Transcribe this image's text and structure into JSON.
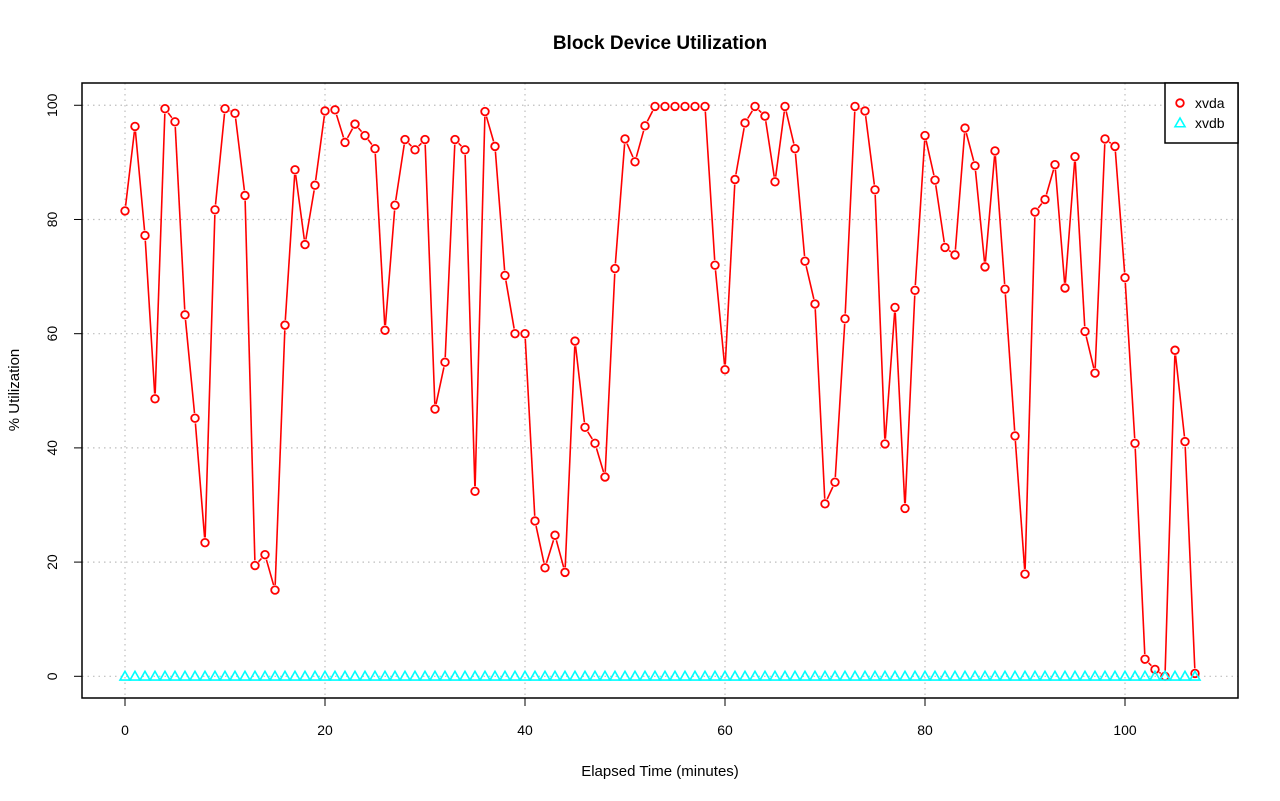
{
  "chart_data": {
    "type": "line",
    "title": "Block Device Utilization",
    "xlabel": "Elapsed Time (minutes)",
    "ylabel": "% Utilization",
    "xlim": [
      -4.3,
      111.3
    ],
    "ylim": [
      -3.8,
      103.9
    ],
    "xticks": [
      0,
      20,
      40,
      60,
      80,
      100
    ],
    "yticks": [
      0,
      20,
      40,
      60,
      80,
      100
    ],
    "grid": true,
    "legend_position": "top-right",
    "series": [
      {
        "name": "xvda",
        "color": "#ff0000",
        "marker": "circle",
        "x": [
          0,
          1,
          2,
          3,
          4,
          5,
          6,
          7,
          8,
          9,
          10,
          11,
          12,
          13,
          14,
          15,
          16,
          17,
          18,
          19,
          20,
          21,
          22,
          23,
          24,
          25,
          26,
          27,
          28,
          29,
          30,
          31,
          32,
          33,
          34,
          35,
          36,
          37,
          38,
          39,
          40,
          41,
          42,
          43,
          44,
          45,
          46,
          47,
          48,
          49,
          50,
          51,
          52,
          53,
          54,
          55,
          56,
          57,
          58,
          59,
          60,
          61,
          62,
          63,
          64,
          65,
          66,
          67,
          68,
          69,
          70,
          71,
          72,
          73,
          74,
          75,
          76,
          77,
          78,
          79,
          80,
          81,
          82,
          83,
          84,
          85,
          86,
          87,
          88,
          89,
          90,
          91,
          92,
          93,
          94,
          95,
          96,
          97,
          98,
          99,
          100,
          101,
          102,
          103,
          104,
          105,
          106,
          107
        ],
        "values": [
          81.5,
          96.3,
          77.2,
          48.6,
          99.4,
          97.1,
          63.3,
          45.2,
          23.4,
          81.7,
          99.4,
          98.6,
          84.2,
          19.4,
          21.3,
          15.1,
          61.5,
          88.7,
          75.6,
          86.0,
          99.0,
          99.2,
          93.5,
          96.7,
          94.7,
          92.4,
          60.6,
          82.5,
          94.0,
          92.2,
          94.0,
          46.8,
          55.0,
          94.0,
          92.2,
          32.4,
          98.9,
          92.8,
          70.2,
          60.0,
          60.0,
          27.2,
          19.0,
          24.7,
          18.2,
          58.7,
          43.6,
          40.8,
          34.9,
          71.4,
          94.1,
          90.1,
          96.4,
          99.8,
          99.8,
          99.8,
          99.8,
          99.8,
          99.8,
          72.0,
          53.7,
          87.0,
          96.9,
          99.8,
          98.1,
          86.6,
          99.8,
          92.4,
          72.7,
          65.2,
          30.2,
          34.0,
          62.6,
          99.8,
          99.0,
          85.2,
          40.7,
          64.6,
          29.4,
          67.6,
          94.7,
          86.9,
          75.1,
          73.8,
          96.0,
          89.4,
          71.7,
          92.0,
          67.8,
          42.1,
          17.9,
          81.3,
          83.5,
          89.6,
          68.0,
          91.0,
          60.4,
          53.1,
          94.1,
          92.8,
          69.8,
          40.8,
          3.0,
          1.2,
          0.0,
          57.1,
          41.1,
          0.5
        ]
      },
      {
        "name": "xvdb",
        "color": "#00ffff",
        "marker": "triangle",
        "x": [
          0,
          1,
          2,
          3,
          4,
          5,
          6,
          7,
          8,
          9,
          10,
          11,
          12,
          13,
          14,
          15,
          16,
          17,
          18,
          19,
          20,
          21,
          22,
          23,
          24,
          25,
          26,
          27,
          28,
          29,
          30,
          31,
          32,
          33,
          34,
          35,
          36,
          37,
          38,
          39,
          40,
          41,
          42,
          43,
          44,
          45,
          46,
          47,
          48,
          49,
          50,
          51,
          52,
          53,
          54,
          55,
          56,
          57,
          58,
          59,
          60,
          61,
          62,
          63,
          64,
          65,
          66,
          67,
          68,
          69,
          70,
          71,
          72,
          73,
          74,
          75,
          76,
          77,
          78,
          79,
          80,
          81,
          82,
          83,
          84,
          85,
          86,
          87,
          88,
          89,
          90,
          91,
          92,
          93,
          94,
          95,
          96,
          97,
          98,
          99,
          100,
          101,
          102,
          103,
          104,
          105,
          106,
          107
        ],
        "values": [
          0,
          0,
          0,
          0,
          0,
          0,
          0,
          0,
          0,
          0,
          0,
          0,
          0,
          0,
          0,
          0,
          0,
          0,
          0,
          0,
          0,
          0,
          0,
          0,
          0,
          0,
          0,
          0,
          0,
          0,
          0,
          0,
          0,
          0,
          0,
          0,
          0,
          0,
          0,
          0,
          0,
          0,
          0,
          0,
          0,
          0,
          0,
          0,
          0,
          0,
          0,
          0,
          0,
          0,
          0,
          0,
          0,
          0,
          0,
          0,
          0,
          0,
          0,
          0,
          0,
          0,
          0,
          0,
          0,
          0,
          0,
          0,
          0,
          0,
          0,
          0,
          0,
          0,
          0,
          0,
          0,
          0,
          0,
          0,
          0,
          0,
          0,
          0,
          0,
          0,
          0,
          0,
          0,
          0,
          0,
          0,
          0,
          0,
          0,
          0,
          0,
          0,
          0,
          0,
          0,
          0,
          0,
          0
        ]
      }
    ]
  }
}
